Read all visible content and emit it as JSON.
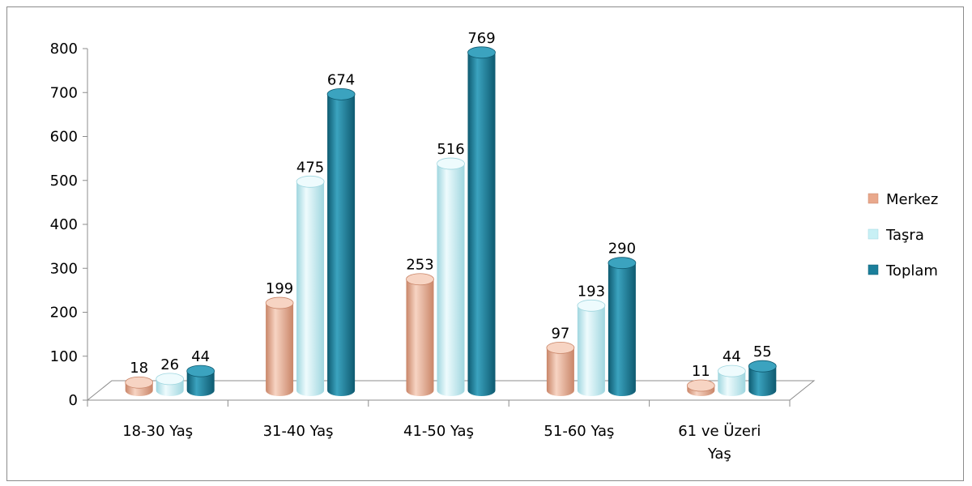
{
  "chart_data": {
    "type": "bar",
    "categories": [
      [
        "18-30 Yaş"
      ],
      [
        "31-40 Yaş"
      ],
      [
        "41-50 Yaş"
      ],
      [
        "51-60 Yaş"
      ],
      [
        "61 ve Üzeri",
        "Yaş"
      ]
    ],
    "series": [
      {
        "name": "Merkez",
        "values": [
          18,
          199,
          253,
          97,
          11
        ],
        "color": "#e9a88c",
        "colorLight": "#f7d4c3",
        "colorDark": "#c98568"
      },
      {
        "name": "Taşra",
        "values": [
          26,
          475,
          516,
          193,
          44
        ],
        "color": "#c8f0f5",
        "colorLight": "#eefbfd",
        "colorDark": "#9fd6df"
      },
      {
        "name": "Toplam",
        "values": [
          44,
          674,
          769,
          290,
          55
        ],
        "color": "#1b7f9b",
        "colorLight": "#3ba3bf",
        "colorDark": "#0e5a70"
      }
    ],
    "yticks": [
      0,
      100,
      200,
      300,
      400,
      500,
      600,
      700,
      800
    ],
    "ylim": [
      0,
      800
    ],
    "legend_position": "right",
    "style": "3d-cylinder"
  }
}
